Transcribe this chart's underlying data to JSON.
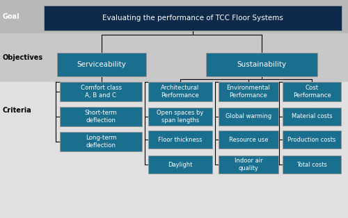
{
  "bg_goal": "#b8b8b8",
  "bg_objectives": "#c8c8c8",
  "bg_criteria": "#e0e0e0",
  "box_dark": "#0d2a4a",
  "box_medium": "#1a6e8e",
  "text_white": "#ffffff",
  "label_goal": "Goal",
  "label_objectives": "Objectives",
  "label_criteria": "Criteria",
  "goal_text": "Evaluating the performance of TCC Floor Systems",
  "obj_serviceability": "Serviceability",
  "obj_sustainability": "Sustainability",
  "crit_comfort": "Comfort class\nA, B and C",
  "crit_short": "Short-term\ndeflection",
  "crit_long": "Long-term\ndeflection",
  "crit_arch_head": "Architectural\nPerformance",
  "crit_arch1": "Open spaces by\nspan lengths",
  "crit_arch2": "Floor thickness",
  "crit_arch3": "Daylight",
  "crit_env_head": "Environmental\nPerformance",
  "crit_env1": "Global warming",
  "crit_env2": "Resource use",
  "crit_env3": "Indoor air\nquality",
  "crit_cost_head": "Cost\nPerformance",
  "crit_cost1": "Material costs",
  "crit_cost2": "Production costs",
  "crit_cost3": "Total costs"
}
